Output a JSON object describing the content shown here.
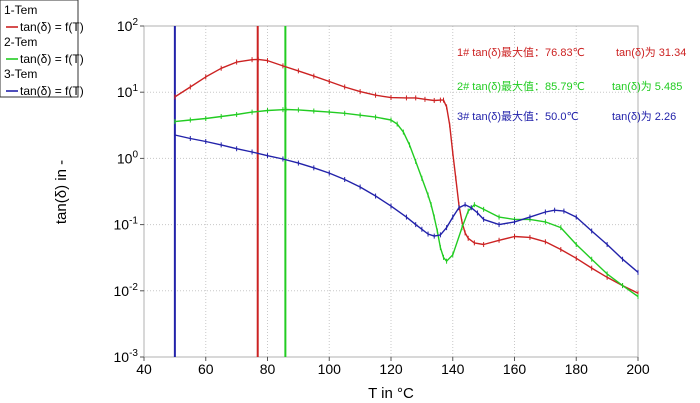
{
  "chart_data": {
    "type": "line",
    "title": "",
    "xlabel": "T in °C",
    "ylabel": "tan(δ) in -",
    "xlim": [
      40,
      200
    ],
    "ylim": [
      0.001,
      100
    ],
    "y_scale": "log",
    "grid": true,
    "legend_position": "top-left, outside plot",
    "x_ticks": [
      40,
      60,
      80,
      100,
      120,
      140,
      160,
      180,
      200
    ],
    "y_ticks": [
      {
        "base": "10",
        "exp": "-3",
        "value": 0.001
      },
      {
        "base": "10",
        "exp": "-2",
        "value": 0.01
      },
      {
        "base": "10",
        "exp": "-1",
        "value": 0.1
      },
      {
        "base": "10",
        "exp": "0",
        "value": 1
      },
      {
        "base": "10",
        "exp": "1",
        "value": 10
      },
      {
        "base": "10",
        "exp": "2",
        "value": 100
      }
    ],
    "series": [
      {
        "name": "1-Tem",
        "legend_line": "tan(δ) = f(T)",
        "color": "#cc2222",
        "x": [
          50,
          55,
          60,
          65,
          70,
          75,
          77,
          80,
          85,
          90,
          95,
          100,
          105,
          110,
          115,
          120,
          125,
          128,
          131,
          134,
          136,
          137,
          138,
          139,
          140,
          141,
          142,
          143,
          144,
          145,
          147,
          150,
          155,
          160,
          165,
          170,
          175,
          180,
          185,
          190,
          195,
          200
        ],
        "y": [
          8.5,
          12,
          17,
          23,
          28.5,
          31,
          31.3,
          30,
          25,
          21,
          17.5,
          14.5,
          12,
          10.2,
          9,
          8.3,
          8.2,
          8.2,
          7.8,
          7.5,
          7.6,
          7.6,
          6,
          3.2,
          1.2,
          0.5,
          0.2,
          0.11,
          0.075,
          0.062,
          0.053,
          0.05,
          0.058,
          0.066,
          0.064,
          0.055,
          0.042,
          0.031,
          0.022,
          0.016,
          0.012,
          0.0092
        ]
      },
      {
        "name": "2-Tem",
        "legend_line": "tan(δ) = f(T)",
        "color": "#22cc22",
        "x": [
          50,
          55,
          60,
          65,
          70,
          75,
          80,
          85,
          86,
          90,
          95,
          100,
          105,
          110,
          115,
          120,
          122,
          124,
          126,
          128,
          130,
          132,
          133,
          134,
          135,
          136,
          137,
          138,
          140,
          143,
          145,
          147,
          150,
          155,
          160,
          165,
          170,
          175,
          180,
          185,
          190,
          195,
          200
        ],
        "y": [
          3.6,
          3.8,
          4.0,
          4.3,
          4.6,
          5.0,
          5.3,
          5.45,
          5.485,
          5.4,
          5.2,
          5.0,
          4.8,
          4.5,
          4.2,
          3.8,
          3.3,
          2.5,
          1.6,
          0.9,
          0.5,
          0.28,
          0.2,
          0.13,
          0.08,
          0.045,
          0.032,
          0.028,
          0.035,
          0.09,
          0.16,
          0.2,
          0.17,
          0.13,
          0.12,
          0.12,
          0.11,
          0.09,
          0.05,
          0.03,
          0.018,
          0.012,
          0.0082
        ]
      },
      {
        "name": "3-Tem",
        "legend_line": "tan(δ) = f(T)",
        "color": "#2222aa",
        "x": [
          50,
          55,
          60,
          65,
          70,
          75,
          80,
          85,
          90,
          95,
          100,
          105,
          110,
          115,
          120,
          125,
          128,
          130,
          132,
          134,
          136,
          138,
          140,
          142,
          144,
          146,
          148,
          150,
          155,
          160,
          165,
          170,
          173,
          176,
          180,
          185,
          190,
          195,
          200
        ],
        "y": [
          2.26,
          2.0,
          1.8,
          1.6,
          1.4,
          1.25,
          1.1,
          0.98,
          0.85,
          0.72,
          0.6,
          0.48,
          0.37,
          0.27,
          0.19,
          0.13,
          0.1,
          0.085,
          0.072,
          0.067,
          0.07,
          0.09,
          0.13,
          0.18,
          0.2,
          0.18,
          0.15,
          0.12,
          0.1,
          0.11,
          0.13,
          0.155,
          0.165,
          0.16,
          0.13,
          0.08,
          0.05,
          0.03,
          0.019
        ]
      }
    ],
    "markers": [
      {
        "x": 50.0,
        "color": "#2222aa"
      },
      {
        "x": 76.83,
        "color": "#cc2222"
      },
      {
        "x": 85.79,
        "color": "#22cc22"
      }
    ],
    "annotations": [
      {
        "label": "1# tan(δ)最大值：76.83℃",
        "value": "tan(δ)为 31.34",
        "color": "#cc2222"
      },
      {
        "label": "2# tan(δ)最大值：85.79℃",
        "value": "tan(δ)为 5.485",
        "color": "#22cc22"
      },
      {
        "label": "3# tan(δ)最大值：50.0℃",
        "value": "tan(δ)为 2.26",
        "color": "#2222aa"
      }
    ]
  }
}
